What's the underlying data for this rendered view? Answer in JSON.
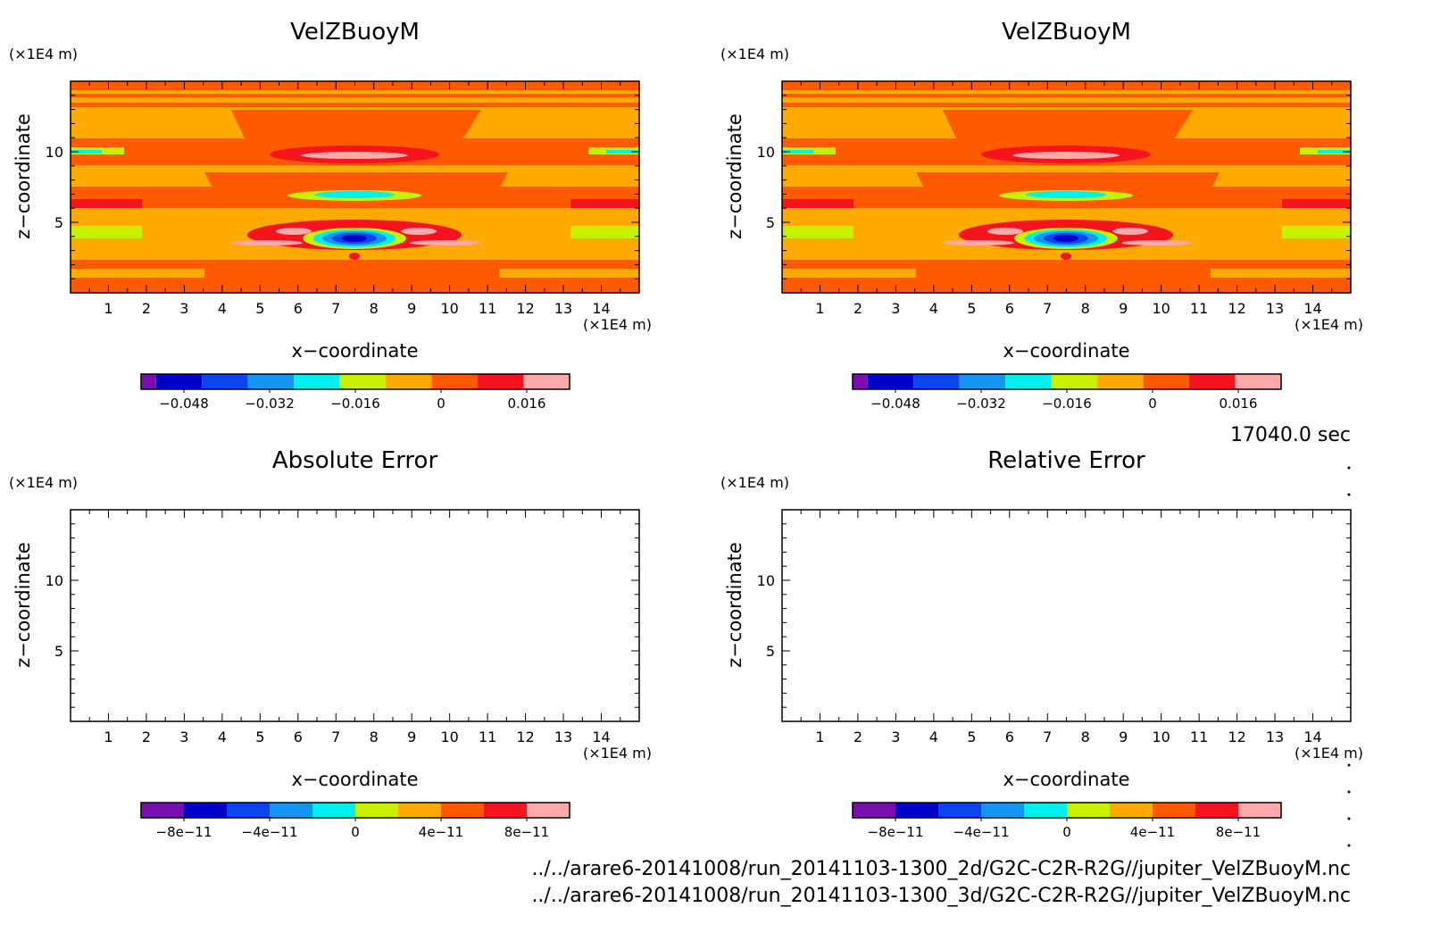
{
  "time_label": "17040.0 sec",
  "paths": [
    "../../arare6-20141008/run_20141103-1300_2d/G2C-C2R-R2G//jupiter_VelZBuoyM.nc",
    "../../arare6-20141008/run_20141103-1300_3d/G2C-C2R-R2G//jupiter_VelZBuoyM.nc"
  ],
  "colors": {
    "cb_field": [
      "#7a0fb0",
      "#0000c8",
      "#0a46f0",
      "#1496f0",
      "#00f0f0",
      "#c8f000",
      "#ffaa00",
      "#ff5a00",
      "#f5141e",
      "#ffaaaa"
    ],
    "cb_error": [
      "#7a0fb0",
      "#0000c8",
      "#0a46f0",
      "#1496f0",
      "#00f0f0",
      "#c8f000",
      "#ffaa00",
      "#ff5a00",
      "#f5141e",
      "#ffaaaa"
    ]
  },
  "chart_data": [
    {
      "id": "p1",
      "type": "heatmap",
      "title": "VelZBuoyM",
      "xlabel": "x−coordinate",
      "ylabel": "z−coordinate",
      "x_unit": "(×1E4 m)",
      "y_unit": "(×1E4 m)",
      "xlim": [
        0,
        15
      ],
      "ylim": [
        0,
        15
      ],
      "xticks": [
        "1",
        "2",
        "3",
        "4",
        "5",
        "6",
        "7",
        "8",
        "9",
        "10",
        "11",
        "12",
        "13",
        "14"
      ],
      "yticks": [
        "5",
        "10"
      ],
      "colorbar": {
        "ticks": [
          "−0.048",
          "−0.032",
          "−0.016",
          "0",
          "0.016"
        ],
        "min": -0.056,
        "max": 0.024
      },
      "has_field": true
    },
    {
      "id": "p2",
      "type": "heatmap",
      "title": "VelZBuoyM",
      "xlabel": "x−coordinate",
      "ylabel": "z−coordinate",
      "x_unit": "(×1E4 m)",
      "y_unit": "(×1E4 m)",
      "xlim": [
        0,
        15
      ],
      "ylim": [
        0,
        15
      ],
      "xticks": [
        "1",
        "2",
        "3",
        "4",
        "5",
        "6",
        "7",
        "8",
        "9",
        "10",
        "11",
        "12",
        "13",
        "14"
      ],
      "yticks": [
        "5",
        "10"
      ],
      "colorbar": {
        "ticks": [
          "−0.048",
          "−0.032",
          "−0.016",
          "0",
          "0.016"
        ],
        "min": -0.056,
        "max": 0.024
      },
      "has_field": true
    },
    {
      "id": "p3",
      "type": "heatmap",
      "title": "Absolute Error",
      "xlabel": "x−coordinate",
      "ylabel": "z−coordinate",
      "x_unit": "(×1E4 m)",
      "y_unit": "(×1E4 m)",
      "xlim": [
        0,
        15
      ],
      "ylim": [
        0,
        15
      ],
      "xticks": [
        "1",
        "2",
        "3",
        "4",
        "5",
        "6",
        "7",
        "8",
        "9",
        "10",
        "11",
        "12",
        "13",
        "14"
      ],
      "yticks": [
        "5",
        "10"
      ],
      "colorbar": {
        "ticks": [
          "−8e−11",
          "−4e−11",
          "0",
          "4e−11",
          "8e−11"
        ],
        "min": -1e-10,
        "max": 1e-10
      },
      "has_field": false
    },
    {
      "id": "p4",
      "type": "heatmap",
      "title": "Relative Error",
      "xlabel": "x−coordinate",
      "ylabel": "z−coordinate",
      "x_unit": "(×1E4 m)",
      "y_unit": "(×1E4 m)",
      "xlim": [
        0,
        15
      ],
      "ylim": [
        0,
        15
      ],
      "xticks": [
        "1",
        "2",
        "3",
        "4",
        "5",
        "6",
        "7",
        "8",
        "9",
        "10",
        "11",
        "12",
        "13",
        "14"
      ],
      "yticks": [
        "5",
        "10"
      ],
      "colorbar": {
        "ticks": [
          "−8e−11",
          "−4e−11",
          "0",
          "4e−11",
          "8e−11"
        ],
        "min": -1e-10,
        "max": 1e-10
      },
      "has_field": false
    }
  ]
}
